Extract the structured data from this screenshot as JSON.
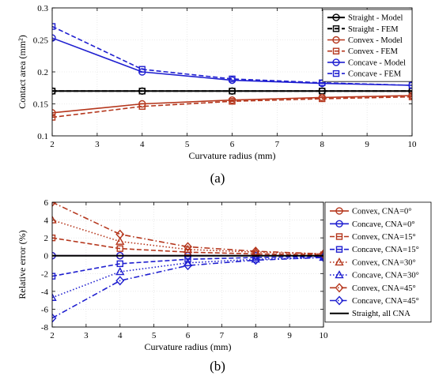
{
  "chart_data": [
    {
      "type": "line",
      "panel_label": "(a)",
      "xlabel": "Curvature radius (mm)",
      "ylabel": "Contact area (mm²)",
      "xlim": [
        2,
        10
      ],
      "ylim": [
        0.1,
        0.3
      ],
      "x_ticks": [
        2,
        3,
        4,
        5,
        6,
        7,
        8,
        9,
        10
      ],
      "y_ticks": [
        0.1,
        0.15,
        0.2,
        0.25,
        0.3
      ],
      "y_tick_labels": [
        "0.1",
        "0.15",
        "0.2",
        "0.25",
        "0.3"
      ],
      "grid": true,
      "legend_position": "top-right",
      "series": [
        {
          "name": "Straight - Model",
          "x": [
            2,
            4,
            6,
            8,
            10
          ],
          "y": [
            0.17,
            0.17,
            0.17,
            0.17,
            0.17
          ],
          "color": "#000000",
          "dash": "solid",
          "marker": "circle"
        },
        {
          "name": "Straight - FEM",
          "x": [
            2,
            4,
            6,
            8,
            10
          ],
          "y": [
            0.17,
            0.17,
            0.17,
            0.17,
            0.17
          ],
          "color": "#000000",
          "dash": "dashed",
          "marker": "square"
        },
        {
          "name": "Convex - Model",
          "x": [
            2,
            4,
            6,
            8,
            10
          ],
          "y": [
            0.136,
            0.15,
            0.156,
            0.16,
            0.163
          ],
          "color": "#b5361c",
          "dash": "solid",
          "marker": "circle"
        },
        {
          "name": "Convex - FEM",
          "x": [
            2,
            4,
            6,
            8,
            10
          ],
          "y": [
            0.129,
            0.146,
            0.154,
            0.158,
            0.161
          ],
          "color": "#b5361c",
          "dash": "dashed",
          "marker": "square"
        },
        {
          "name": "Concave - Model",
          "x": [
            2,
            4,
            6,
            8,
            10
          ],
          "y": [
            0.253,
            0.2,
            0.187,
            0.182,
            0.179
          ],
          "color": "#1f1fd0",
          "dash": "solid",
          "marker": "circle"
        },
        {
          "name": "Concave - FEM",
          "x": [
            2,
            4,
            6,
            8,
            10
          ],
          "y": [
            0.271,
            0.204,
            0.189,
            0.183,
            0.179
          ],
          "color": "#1f1fd0",
          "dash": "dashed",
          "marker": "square"
        }
      ]
    },
    {
      "type": "line",
      "panel_label": "(b)",
      "xlabel": "Curvature radius (mm)",
      "ylabel": "Relative error (%)",
      "xlim": [
        2,
        10
      ],
      "ylim": [
        -8,
        6
      ],
      "x_ticks": [
        2,
        3,
        4,
        5,
        6,
        7,
        8,
        9,
        10
      ],
      "y_ticks": [
        -8,
        -6,
        -4,
        -2,
        0,
        2,
        4,
        6
      ],
      "y_tick_labels": [
        "-8",
        "-6",
        "-4",
        "-2",
        "0",
        "2",
        "4",
        "6"
      ],
      "grid": true,
      "legend_position": "right",
      "series": [
        {
          "name": "Convex, CNA=0°",
          "x": [
            2,
            4,
            6,
            8,
            10
          ],
          "y": [
            0,
            0,
            0,
            0,
            0
          ],
          "color": "#b5361c",
          "dash": "solid",
          "marker": "circle"
        },
        {
          "name": "Concave, CNA=0°",
          "x": [
            2,
            4,
            6,
            8,
            10
          ],
          "y": [
            0,
            0,
            0,
            0,
            0
          ],
          "color": "#1f1fd0",
          "dash": "solid",
          "marker": "circle"
        },
        {
          "name": "Convex, CNA=15°",
          "x": [
            2,
            4,
            6,
            8,
            10
          ],
          "y": [
            2.0,
            0.8,
            0.4,
            0.2,
            0.1
          ],
          "color": "#b5361c",
          "dash": "dashed",
          "marker": "square"
        },
        {
          "name": "Concave, CNA=15°",
          "x": [
            2,
            4,
            6,
            8,
            10
          ],
          "y": [
            -2.3,
            -0.9,
            -0.4,
            -0.2,
            -0.1
          ],
          "color": "#1f1fd0",
          "dash": "dashed",
          "marker": "square"
        },
        {
          "name": "Convex, CNA=30°",
          "x": [
            2,
            4,
            6,
            8,
            10
          ],
          "y": [
            4.0,
            1.6,
            0.7,
            0.4,
            0.2
          ],
          "color": "#b5361c",
          "dash": "dotted",
          "marker": "triangle"
        },
        {
          "name": "Concave, CNA=30°",
          "x": [
            2,
            4,
            6,
            8,
            10
          ],
          "y": [
            -4.7,
            -1.8,
            -0.8,
            -0.4,
            -0.2
          ],
          "color": "#1f1fd0",
          "dash": "dotted",
          "marker": "triangle"
        },
        {
          "name": "Convex, CNA=45°",
          "x": [
            2,
            4,
            6,
            8,
            10
          ],
          "y": [
            6.0,
            2.4,
            1.0,
            0.5,
            0.2
          ],
          "color": "#b5361c",
          "dash": "dashdot",
          "marker": "diamond"
        },
        {
          "name": "Concave, CNA=45°",
          "x": [
            2,
            4,
            6,
            8,
            10
          ],
          "y": [
            -7.0,
            -2.8,
            -1.1,
            -0.5,
            -0.2
          ],
          "color": "#1f1fd0",
          "dash": "dashdot",
          "marker": "diamond"
        },
        {
          "name": "Straight, all CNA",
          "x": [
            2,
            4,
            6,
            8,
            10
          ],
          "y": [
            0,
            0,
            0,
            0,
            0
          ],
          "color": "#000000",
          "dash": "solid",
          "marker": "none"
        }
      ]
    }
  ]
}
